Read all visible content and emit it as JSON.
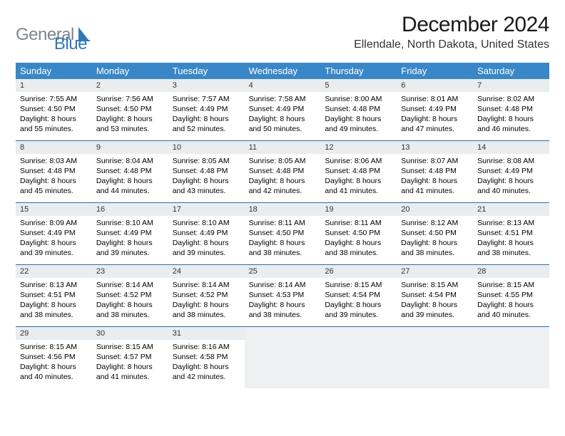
{
  "logo": {
    "text1": "General",
    "text2": "Blue"
  },
  "title": "December 2024",
  "location": "Ellendale, North Dakota, United States",
  "colors": {
    "header_bg": "#3a87c7",
    "header_text": "#ffffff",
    "daynum_bg": "#e9edef",
    "week_border": "#2d6da3",
    "logo_gray": "#7d8790",
    "logo_blue": "#2f78b8",
    "empty_bg": "#eef0f2"
  },
  "day_names": [
    "Sunday",
    "Monday",
    "Tuesday",
    "Wednesday",
    "Thursday",
    "Friday",
    "Saturday"
  ],
  "weeks": [
    [
      {
        "n": "1",
        "sr": "Sunrise: 7:55 AM",
        "ss": "Sunset: 4:50 PM",
        "dl": "Daylight: 8 hours and 55 minutes."
      },
      {
        "n": "2",
        "sr": "Sunrise: 7:56 AM",
        "ss": "Sunset: 4:50 PM",
        "dl": "Daylight: 8 hours and 53 minutes."
      },
      {
        "n": "3",
        "sr": "Sunrise: 7:57 AM",
        "ss": "Sunset: 4:49 PM",
        "dl": "Daylight: 8 hours and 52 minutes."
      },
      {
        "n": "4",
        "sr": "Sunrise: 7:58 AM",
        "ss": "Sunset: 4:49 PM",
        "dl": "Daylight: 8 hours and 50 minutes."
      },
      {
        "n": "5",
        "sr": "Sunrise: 8:00 AM",
        "ss": "Sunset: 4:48 PM",
        "dl": "Daylight: 8 hours and 49 minutes."
      },
      {
        "n": "6",
        "sr": "Sunrise: 8:01 AM",
        "ss": "Sunset: 4:49 PM",
        "dl": "Daylight: 8 hours and 47 minutes."
      },
      {
        "n": "7",
        "sr": "Sunrise: 8:02 AM",
        "ss": "Sunset: 4:48 PM",
        "dl": "Daylight: 8 hours and 46 minutes."
      }
    ],
    [
      {
        "n": "8",
        "sr": "Sunrise: 8:03 AM",
        "ss": "Sunset: 4:48 PM",
        "dl": "Daylight: 8 hours and 45 minutes."
      },
      {
        "n": "9",
        "sr": "Sunrise: 8:04 AM",
        "ss": "Sunset: 4:48 PM",
        "dl": "Daylight: 8 hours and 44 minutes."
      },
      {
        "n": "10",
        "sr": "Sunrise: 8:05 AM",
        "ss": "Sunset: 4:48 PM",
        "dl": "Daylight: 8 hours and 43 minutes."
      },
      {
        "n": "11",
        "sr": "Sunrise: 8:05 AM",
        "ss": "Sunset: 4:48 PM",
        "dl": "Daylight: 8 hours and 42 minutes."
      },
      {
        "n": "12",
        "sr": "Sunrise: 8:06 AM",
        "ss": "Sunset: 4:48 PM",
        "dl": "Daylight: 8 hours and 41 minutes."
      },
      {
        "n": "13",
        "sr": "Sunrise: 8:07 AM",
        "ss": "Sunset: 4:48 PM",
        "dl": "Daylight: 8 hours and 41 minutes."
      },
      {
        "n": "14",
        "sr": "Sunrise: 8:08 AM",
        "ss": "Sunset: 4:49 PM",
        "dl": "Daylight: 8 hours and 40 minutes."
      }
    ],
    [
      {
        "n": "15",
        "sr": "Sunrise: 8:09 AM",
        "ss": "Sunset: 4:49 PM",
        "dl": "Daylight: 8 hours and 39 minutes."
      },
      {
        "n": "16",
        "sr": "Sunrise: 8:10 AM",
        "ss": "Sunset: 4:49 PM",
        "dl": "Daylight: 8 hours and 39 minutes."
      },
      {
        "n": "17",
        "sr": "Sunrise: 8:10 AM",
        "ss": "Sunset: 4:49 PM",
        "dl": "Daylight: 8 hours and 39 minutes."
      },
      {
        "n": "18",
        "sr": "Sunrise: 8:11 AM",
        "ss": "Sunset: 4:50 PM",
        "dl": "Daylight: 8 hours and 38 minutes."
      },
      {
        "n": "19",
        "sr": "Sunrise: 8:11 AM",
        "ss": "Sunset: 4:50 PM",
        "dl": "Daylight: 8 hours and 38 minutes."
      },
      {
        "n": "20",
        "sr": "Sunrise: 8:12 AM",
        "ss": "Sunset: 4:50 PM",
        "dl": "Daylight: 8 hours and 38 minutes."
      },
      {
        "n": "21",
        "sr": "Sunrise: 8:13 AM",
        "ss": "Sunset: 4:51 PM",
        "dl": "Daylight: 8 hours and 38 minutes."
      }
    ],
    [
      {
        "n": "22",
        "sr": "Sunrise: 8:13 AM",
        "ss": "Sunset: 4:51 PM",
        "dl": "Daylight: 8 hours and 38 minutes."
      },
      {
        "n": "23",
        "sr": "Sunrise: 8:14 AM",
        "ss": "Sunset: 4:52 PM",
        "dl": "Daylight: 8 hours and 38 minutes."
      },
      {
        "n": "24",
        "sr": "Sunrise: 8:14 AM",
        "ss": "Sunset: 4:52 PM",
        "dl": "Daylight: 8 hours and 38 minutes."
      },
      {
        "n": "25",
        "sr": "Sunrise: 8:14 AM",
        "ss": "Sunset: 4:53 PM",
        "dl": "Daylight: 8 hours and 38 minutes."
      },
      {
        "n": "26",
        "sr": "Sunrise: 8:15 AM",
        "ss": "Sunset: 4:54 PM",
        "dl": "Daylight: 8 hours and 39 minutes."
      },
      {
        "n": "27",
        "sr": "Sunrise: 8:15 AM",
        "ss": "Sunset: 4:54 PM",
        "dl": "Daylight: 8 hours and 39 minutes."
      },
      {
        "n": "28",
        "sr": "Sunrise: 8:15 AM",
        "ss": "Sunset: 4:55 PM",
        "dl": "Daylight: 8 hours and 40 minutes."
      }
    ],
    [
      {
        "n": "29",
        "sr": "Sunrise: 8:15 AM",
        "ss": "Sunset: 4:56 PM",
        "dl": "Daylight: 8 hours and 40 minutes."
      },
      {
        "n": "30",
        "sr": "Sunrise: 8:15 AM",
        "ss": "Sunset: 4:57 PM",
        "dl": "Daylight: 8 hours and 41 minutes."
      },
      {
        "n": "31",
        "sr": "Sunrise: 8:16 AM",
        "ss": "Sunset: 4:58 PM",
        "dl": "Daylight: 8 hours and 42 minutes."
      },
      null,
      null,
      null,
      null
    ]
  ]
}
